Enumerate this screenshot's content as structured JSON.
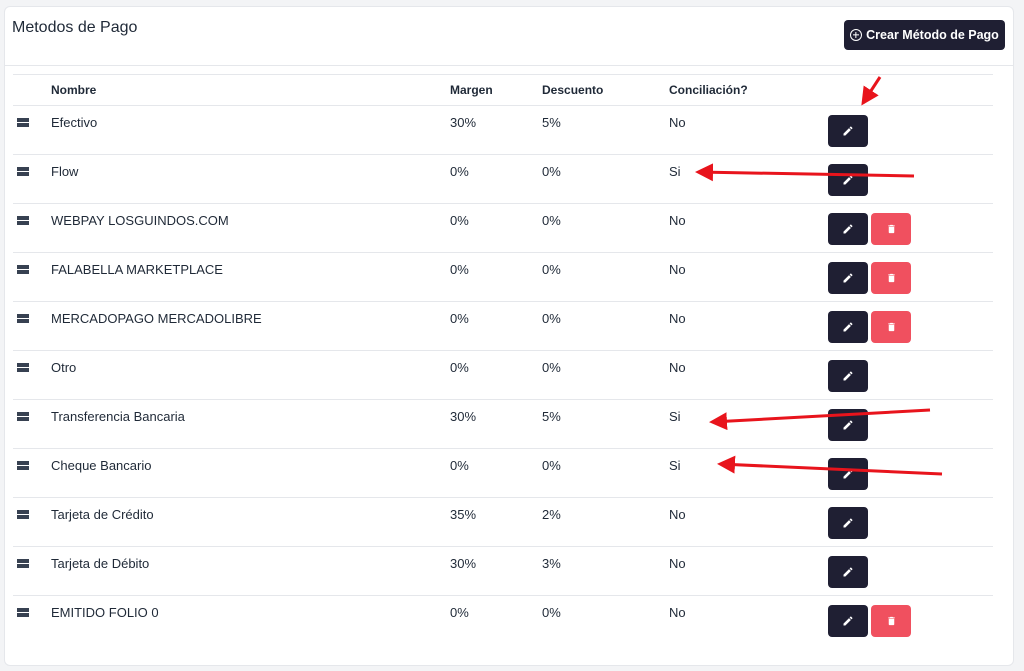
{
  "header": {
    "title": "Metodos de Pago",
    "create_button_label": "Crear Método de Pago"
  },
  "table": {
    "columns": {
      "name": "Nombre",
      "margin": "Margen",
      "discount": "Descuento",
      "reconciliation": "Conciliación?"
    },
    "rows": [
      {
        "name": "Efectivo",
        "margin": "30%",
        "discount": "5%",
        "reconciliation": "No",
        "deletable": false
      },
      {
        "name": "Flow",
        "margin": "0%",
        "discount": "0%",
        "reconciliation": "Si",
        "deletable": false
      },
      {
        "name": "WEBPAY LOSGUINDOS.COM",
        "margin": "0%",
        "discount": "0%",
        "reconciliation": "No",
        "deletable": true
      },
      {
        "name": "FALABELLA MARKETPLACE",
        "margin": "0%",
        "discount": "0%",
        "reconciliation": "No",
        "deletable": true
      },
      {
        "name": "MERCADOPAGO MERCADOLIBRE",
        "margin": "0%",
        "discount": "0%",
        "reconciliation": "No",
        "deletable": true
      },
      {
        "name": "Otro",
        "margin": "0%",
        "discount": "0%",
        "reconciliation": "No",
        "deletable": false
      },
      {
        "name": "Transferencia Bancaria",
        "margin": "30%",
        "discount": "5%",
        "reconciliation": "Si",
        "deletable": false
      },
      {
        "name": "Cheque Bancario",
        "margin": "0%",
        "discount": "0%",
        "reconciliation": "Si",
        "deletable": false
      },
      {
        "name": "Tarjeta de Crédito",
        "margin": "35%",
        "discount": "2%",
        "reconciliation": "No",
        "deletable": false
      },
      {
        "name": "Tarjeta de Débito",
        "margin": "30%",
        "discount": "3%",
        "reconciliation": "No",
        "deletable": false
      },
      {
        "name": "EMITIDO FOLIO 0",
        "margin": "0%",
        "discount": "0%",
        "reconciliation": "No",
        "deletable": true
      }
    ]
  },
  "icons": {
    "drag": "drag-handle-icon",
    "edit": "pencil-icon",
    "delete": "trash-icon",
    "create": "plus-circle-icon"
  },
  "colors": {
    "primary_dark": "#1f1f33",
    "danger": "#f0505f",
    "annotation_arrow": "#e8141c"
  }
}
